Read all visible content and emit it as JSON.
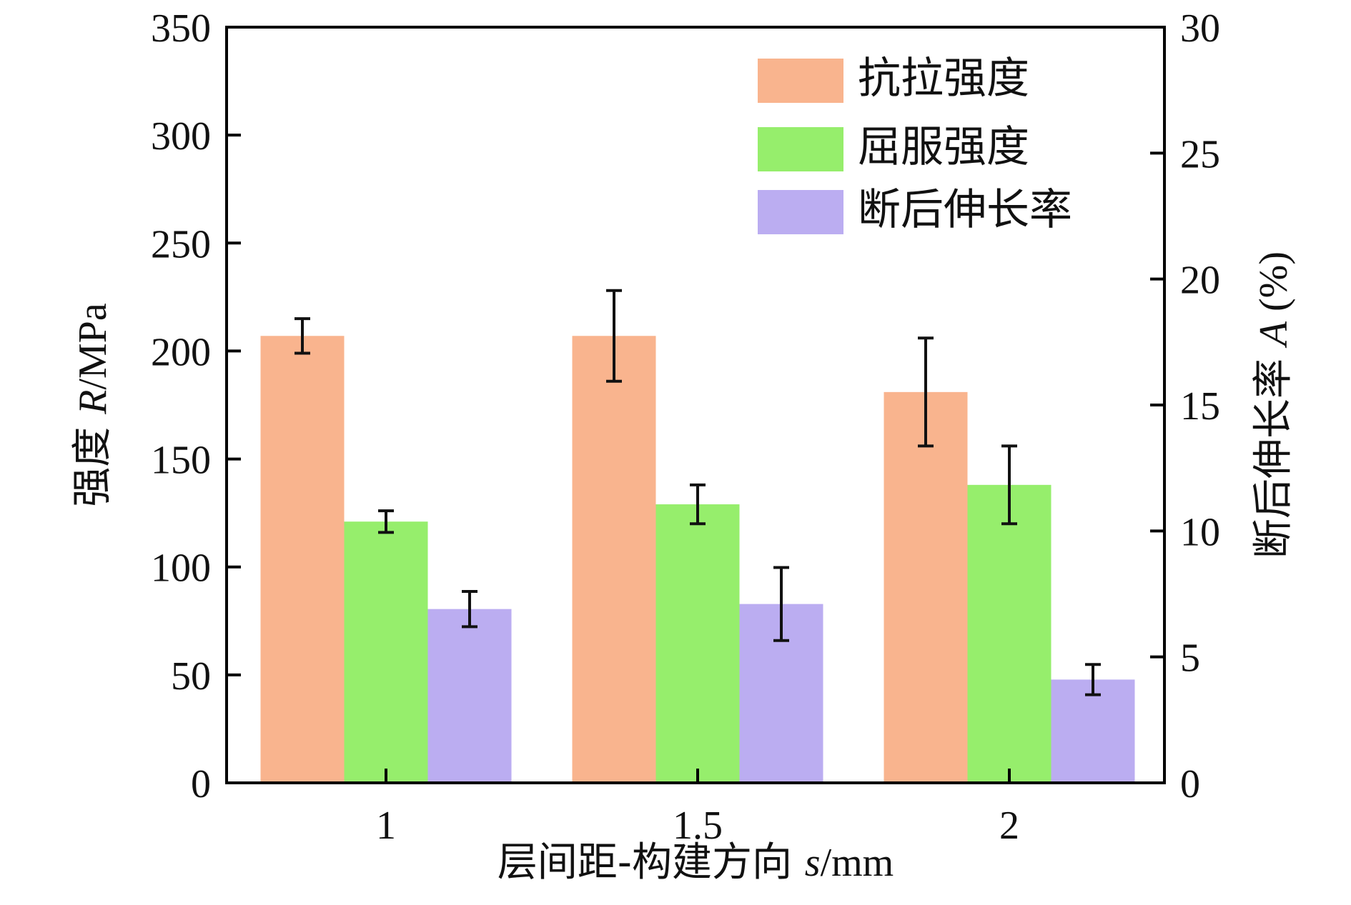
{
  "chart_data": {
    "type": "bar",
    "categories": [
      "1",
      "1.5",
      "2"
    ],
    "series": [
      {
        "name": "抗拉强度",
        "axis": "left",
        "color": "#F9B48E",
        "values": [
          207,
          207,
          181
        ],
        "errors": [
          8,
          21,
          25
        ]
      },
      {
        "name": "屈服强度",
        "axis": "left",
        "color": "#96EE6C",
        "values": [
          121,
          129,
          138
        ],
        "errors": [
          5,
          9,
          18
        ]
      },
      {
        "name": "断后伸长率",
        "axis": "right",
        "color": "#BBADF1",
        "values": [
          6.9,
          7.1,
          4.1
        ],
        "errors": [
          0.7,
          1.45,
          0.6
        ]
      }
    ],
    "xlabel": {
      "prefix": "层间距-构建方向 ",
      "italic": "s",
      "suffix": "/mm"
    },
    "ylabel_left": {
      "prefix": "强度 ",
      "italic": "R",
      "suffix": "/MPa"
    },
    "ylabel_right": {
      "prefix": "断后伸长率 ",
      "italic": "A",
      "suffix": " (%)"
    },
    "ylim_left": [
      0,
      350
    ],
    "ylim_right": [
      0,
      30
    ],
    "yticks_left": [
      "0",
      "50",
      "100",
      "150",
      "200",
      "250",
      "300",
      "350"
    ],
    "yticks_right": [
      "0",
      "5",
      "10",
      "15",
      "20",
      "25",
      "30"
    ],
    "legend_position": "top-right"
  }
}
